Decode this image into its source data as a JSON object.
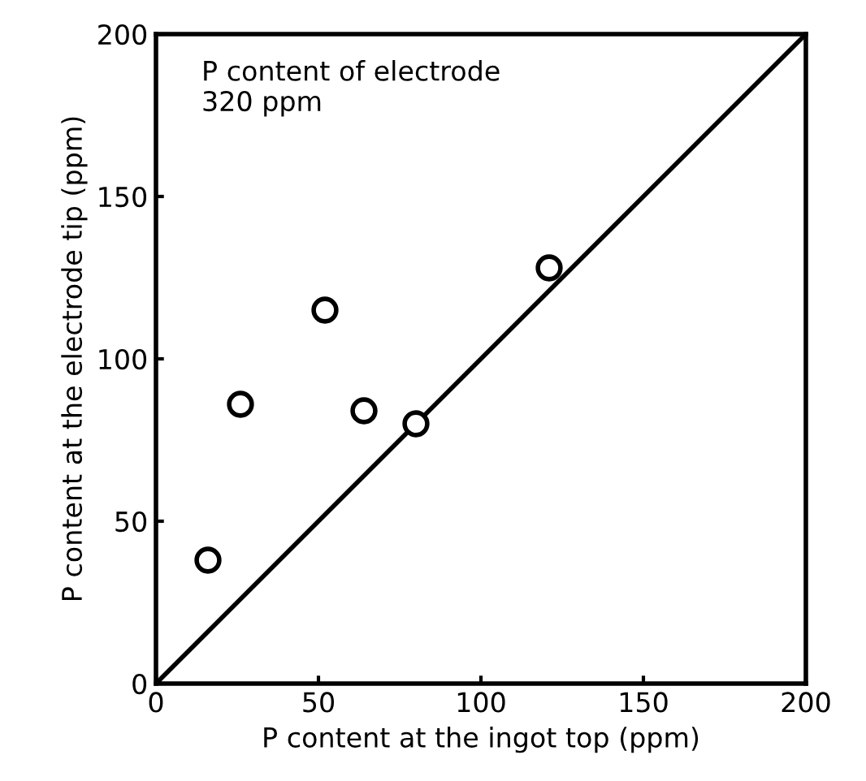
{
  "chart_data": {
    "type": "scatter",
    "xlabel": "P content at the ingot top (ppm)",
    "ylabel": "P content at the electrode tip (ppm)",
    "annotations": [
      "P content of electrode\n320 ppm"
    ],
    "series": [
      {
        "color": "#000000",
        "marker": "circle",
        "x": [
          16,
          26,
          52,
          64,
          80,
          121
        ],
        "values": [
          38,
          86,
          115,
          84,
          80,
          128
        ]
      },
      {
        "type": "line",
        "color": "#000000",
        "marker": "none",
        "x": [
          0,
          200
        ],
        "values": [
          0,
          200
        ]
      }
    ],
    "xlim": [
      0,
      200
    ],
    "ylim": [
      0,
      200
    ],
    "xticks": [
      0,
      50,
      100,
      150,
      200
    ],
    "yticks": [
      0,
      50,
      100,
      150,
      200
    ],
    "grid": false,
    "legend": false
  }
}
